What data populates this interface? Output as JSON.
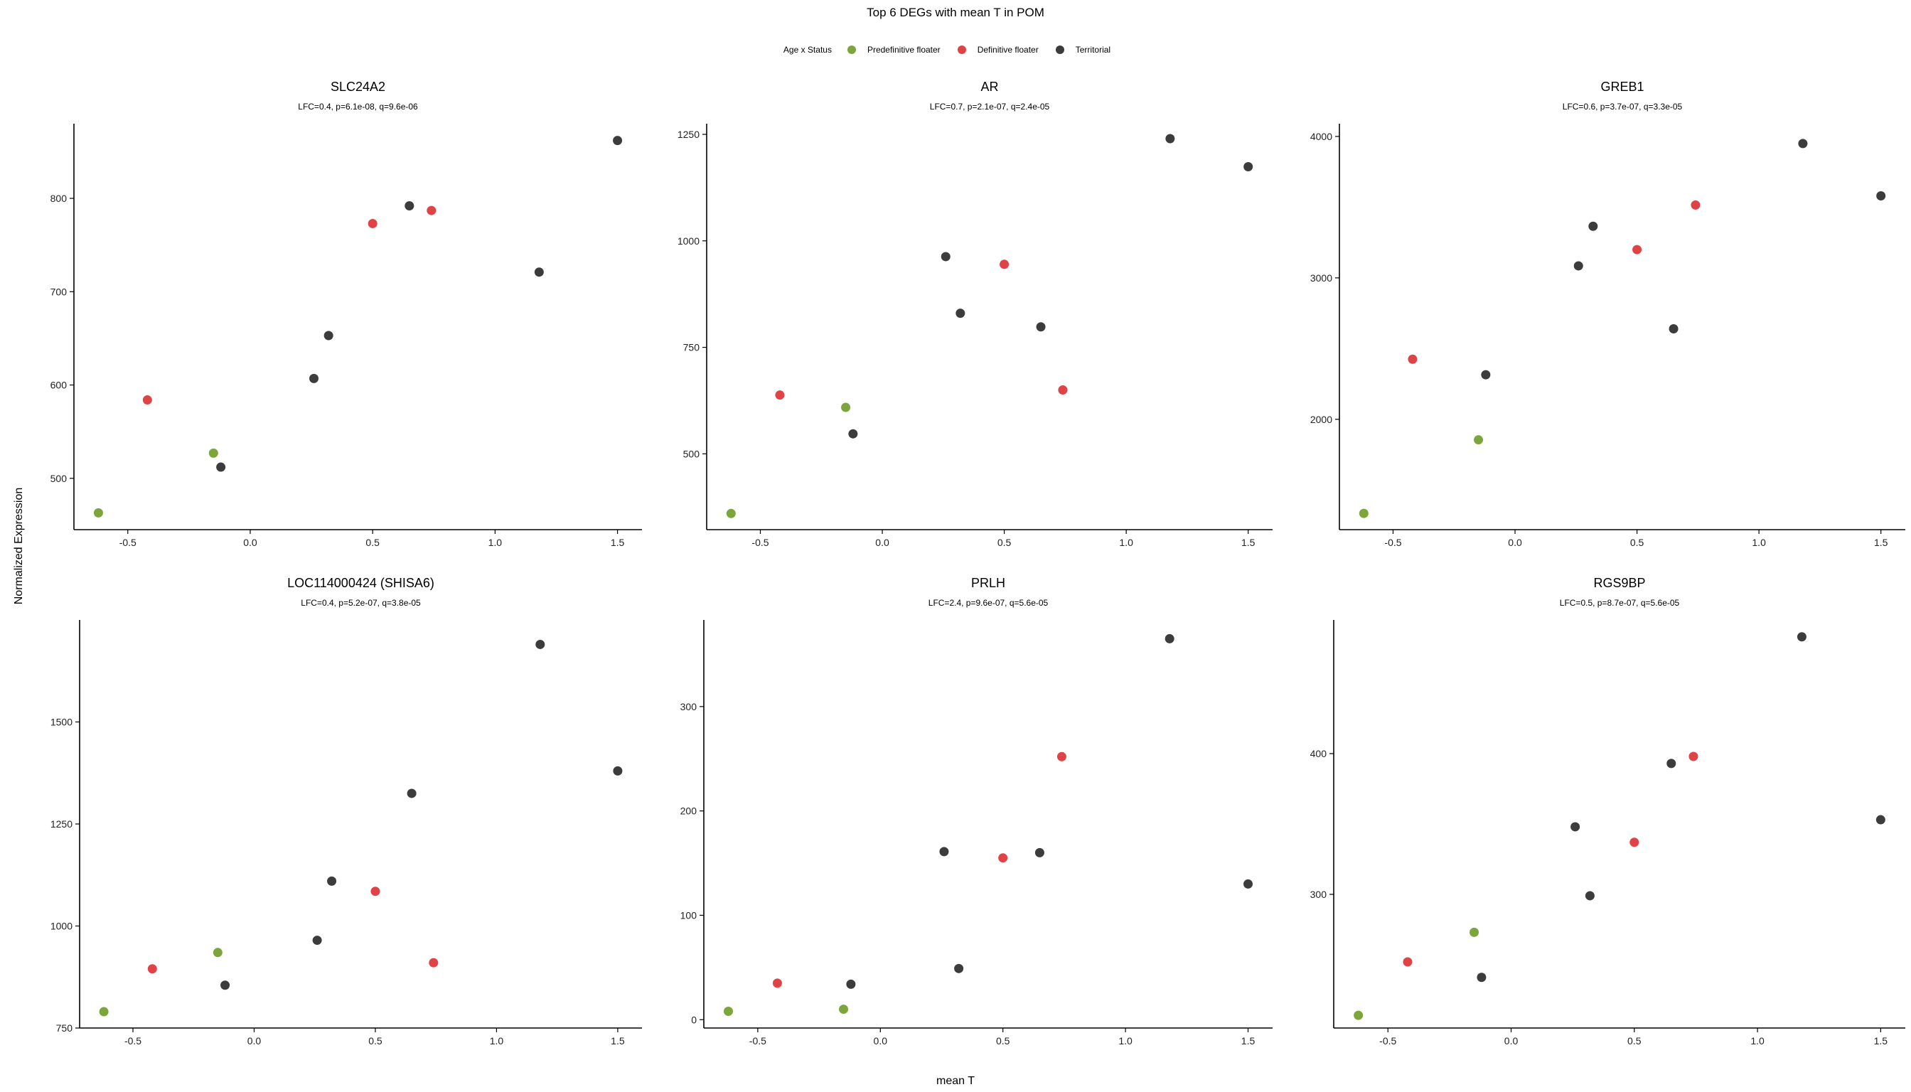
{
  "figure": {
    "title": "Top 6 DEGs with mean T in POM",
    "xlabel": "mean T",
    "ylabel": "Normalized Expression",
    "legend": {
      "title": "Age x Status",
      "entries": [
        {
          "name": "Predefinitive floater",
          "color": "#7ca53c"
        },
        {
          "name": "Definitive floater",
          "color": "#e04345"
        },
        {
          "name": "Territorial",
          "color": "#3c3c3c"
        }
      ]
    }
  },
  "chart_data": [
    {
      "type": "scatter",
      "title": "SLC24A2",
      "subtitle": "LFC=0.4, p=6.1e-08, q=9.6e-06",
      "xlim": [
        -0.72,
        1.6
      ],
      "ylim": [
        445,
        880
      ],
      "xticks": [
        -0.5,
        0.0,
        0.5,
        1.0,
        1.5
      ],
      "xtick_labels": [
        "-0.5",
        "0.0",
        "0.5",
        "1.0",
        "1.5"
      ],
      "yticks": [
        500,
        600,
        700,
        800
      ],
      "ytick_labels": [
        "500",
        "600",
        "700",
        "800"
      ],
      "series": [
        {
          "name": "Predefinitive floater",
          "color": "#7ca53c",
          "x": [
            -0.62,
            -0.15
          ],
          "y": [
            463,
            527
          ]
        },
        {
          "name": "Definitive floater",
          "color": "#e04345",
          "x": [
            -0.42,
            0.5,
            0.74
          ],
          "y": [
            584,
            773,
            787
          ]
        },
        {
          "name": "Territorial",
          "color": "#3c3c3c",
          "x": [
            -0.12,
            0.26,
            0.32,
            0.65,
            1.18,
            1.5
          ],
          "y": [
            512,
            607,
            653,
            792,
            721,
            862
          ]
        }
      ]
    },
    {
      "type": "scatter",
      "title": "AR",
      "subtitle": "LFC=0.7, p=2.1e-07, q=2.4e-05",
      "xlim": [
        -0.72,
        1.6
      ],
      "ylim": [
        322,
        1275
      ],
      "xticks": [
        -0.5,
        0.0,
        0.5,
        1.0,
        1.5
      ],
      "xtick_labels": [
        "-0.5",
        "0.0",
        "0.5",
        "1.0",
        "1.5"
      ],
      "yticks": [
        500,
        750,
        1000,
        1250
      ],
      "ytick_labels": [
        "500",
        "750",
        "1000",
        "1250"
      ],
      "series": [
        {
          "name": "Predefinitive floater",
          "color": "#7ca53c",
          "x": [
            -0.62,
            -0.15
          ],
          "y": [
            360,
            609
          ]
        },
        {
          "name": "Definitive floater",
          "color": "#e04345",
          "x": [
            -0.42,
            0.5,
            0.74
          ],
          "y": [
            638,
            945,
            650
          ]
        },
        {
          "name": "Territorial",
          "color": "#3c3c3c",
          "x": [
            -0.12,
            0.26,
            0.32,
            0.65,
            1.18,
            1.5
          ],
          "y": [
            547,
            963,
            830,
            798,
            1240,
            1174
          ]
        }
      ]
    },
    {
      "type": "scatter",
      "title": "GREB1",
      "subtitle": "LFC=0.6, p=3.7e-07, q=3.3e-05",
      "xlim": [
        -0.72,
        1.6
      ],
      "ylim": [
        1220,
        4090
      ],
      "xticks": [
        -0.5,
        0.0,
        0.5,
        1.0,
        1.5
      ],
      "xtick_labels": [
        "-0.5",
        "0.0",
        "0.5",
        "1.0",
        "1.5"
      ],
      "yticks": [
        2000,
        3000,
        4000
      ],
      "ytick_labels": [
        "2000",
        "3000",
        "4000"
      ],
      "series": [
        {
          "name": "Predefinitive floater",
          "color": "#7ca53c",
          "x": [
            -0.62,
            -0.15
          ],
          "y": [
            1335,
            1855
          ]
        },
        {
          "name": "Definitive floater",
          "color": "#e04345",
          "x": [
            -0.42,
            0.5,
            0.74
          ],
          "y": [
            2425,
            3200,
            3515
          ]
        },
        {
          "name": "Territorial",
          "color": "#3c3c3c",
          "x": [
            -0.12,
            0.26,
            0.32,
            0.65,
            1.18,
            1.5
          ],
          "y": [
            2315,
            3085,
            3365,
            2640,
            3950,
            3580
          ]
        }
      ]
    },
    {
      "type": "scatter",
      "title": "LOC114000424 (SHISA6)",
      "subtitle": "LFC=0.4, p=5.2e-07, q=3.8e-05",
      "xlim": [
        -0.72,
        1.6
      ],
      "ylim": [
        750,
        1750
      ],
      "xticks": [
        -0.5,
        0.0,
        0.5,
        1.0,
        1.5
      ],
      "xtick_labels": [
        "-0.5",
        "0.0",
        "0.5",
        "1.0",
        "1.5"
      ],
      "yticks": [
        750,
        1000,
        1250,
        1500
      ],
      "ytick_labels": [
        "750",
        "1000",
        "1250",
        "1500"
      ],
      "series": [
        {
          "name": "Predefinitive floater",
          "color": "#7ca53c",
          "x": [
            -0.62,
            -0.15
          ],
          "y": [
            790,
            935
          ]
        },
        {
          "name": "Definitive floater",
          "color": "#e04345",
          "x": [
            -0.42,
            0.5,
            0.74
          ],
          "y": [
            895,
            1085,
            910
          ]
        },
        {
          "name": "Territorial",
          "color": "#3c3c3c",
          "x": [
            -0.12,
            0.26,
            0.32,
            0.65,
            1.18,
            1.5
          ],
          "y": [
            855,
            965,
            1110,
            1325,
            1690,
            1380
          ]
        }
      ]
    },
    {
      "type": "scatter",
      "title": "PRLH",
      "subtitle": "LFC=2.4, p=9.6e-07, q=5.6e-05",
      "xlim": [
        -0.72,
        1.6
      ],
      "ylim": [
        -8,
        383
      ],
      "xticks": [
        -0.5,
        0.0,
        0.5,
        1.0,
        1.5
      ],
      "xtick_labels": [
        "-0.5",
        "0.0",
        "0.5",
        "1.0",
        "1.5"
      ],
      "yticks": [
        0,
        100,
        200,
        300
      ],
      "ytick_labels": [
        "0",
        "100",
        "200",
        "300"
      ],
      "series": [
        {
          "name": "Predefinitive floater",
          "color": "#7ca53c",
          "x": [
            -0.62,
            -0.15
          ],
          "y": [
            8,
            10
          ]
        },
        {
          "name": "Definitive floater",
          "color": "#e04345",
          "x": [
            -0.42,
            0.5,
            0.74
          ],
          "y": [
            35,
            155,
            252
          ]
        },
        {
          "name": "Territorial",
          "color": "#3c3c3c",
          "x": [
            -0.12,
            0.26,
            0.32,
            0.65,
            1.18,
            1.5
          ],
          "y": [
            34,
            161,
            49,
            160,
            365,
            130
          ]
        }
      ]
    },
    {
      "type": "scatter",
      "title": "RGS9BP",
      "subtitle": "LFC=0.5, p=8.7e-07, q=5.6e-05",
      "xlim": [
        -0.72,
        1.6
      ],
      "ylim": [
        205,
        495
      ],
      "xticks": [
        -0.5,
        0.0,
        0.5,
        1.0,
        1.5
      ],
      "xtick_labels": [
        "-0.5",
        "0.0",
        "0.5",
        "1.0",
        "1.5"
      ],
      "yticks": [
        300,
        400
      ],
      "ytick_labels": [
        "300",
        "400"
      ],
      "series": [
        {
          "name": "Predefinitive floater",
          "color": "#7ca53c",
          "x": [
            -0.62,
            -0.15
          ],
          "y": [
            214,
            273
          ]
        },
        {
          "name": "Definitive floater",
          "color": "#e04345",
          "x": [
            -0.42,
            0.5,
            0.74
          ],
          "y": [
            252,
            337,
            398
          ]
        },
        {
          "name": "Territorial",
          "color": "#3c3c3c",
          "x": [
            -0.12,
            0.26,
            0.32,
            0.65,
            1.18,
            1.5
          ],
          "y": [
            241,
            348,
            299,
            393,
            483,
            353
          ]
        }
      ]
    }
  ]
}
